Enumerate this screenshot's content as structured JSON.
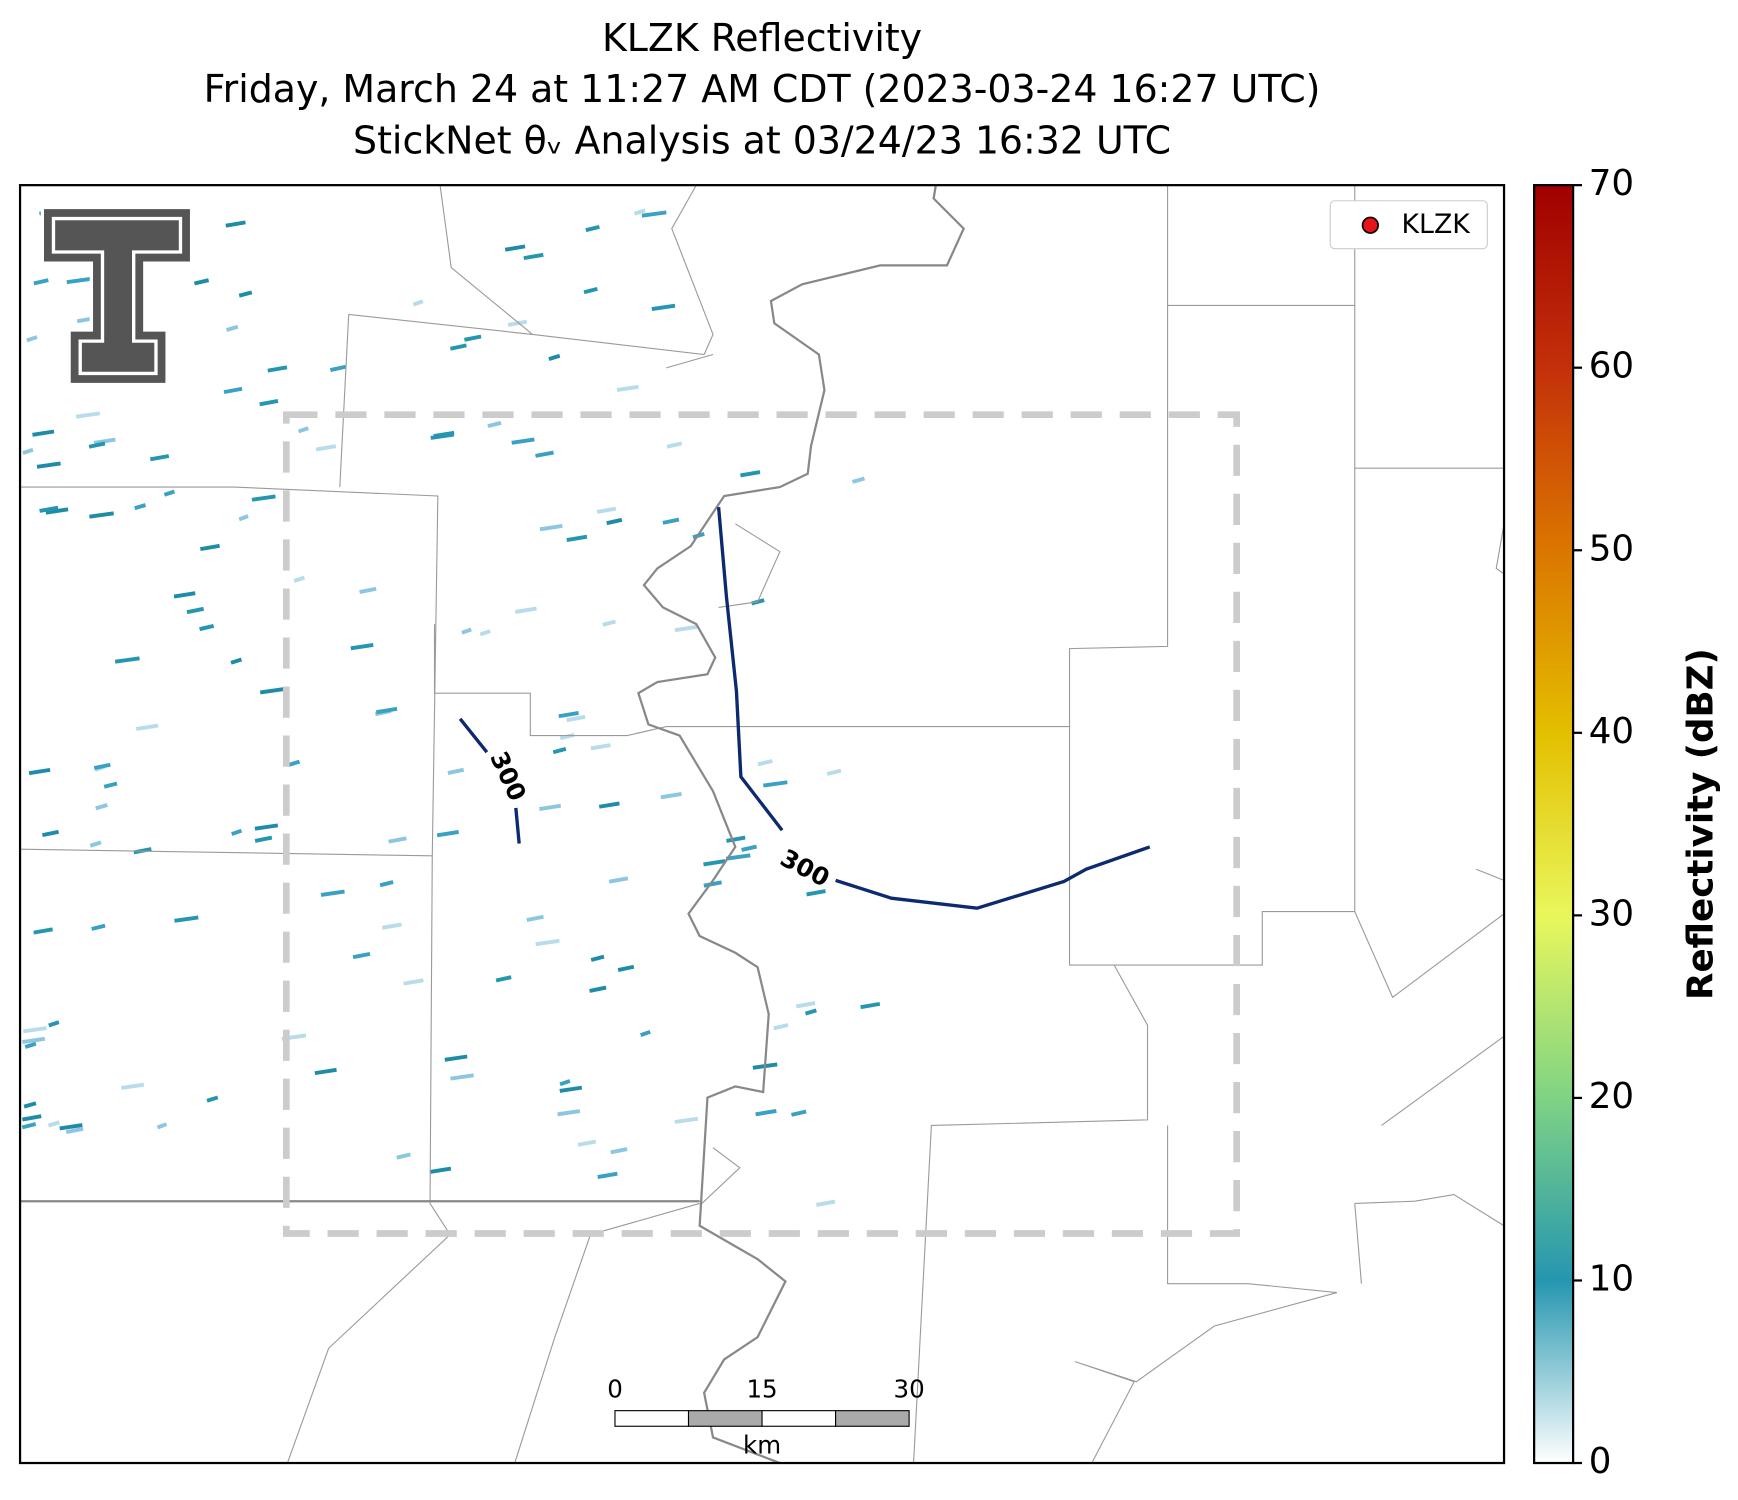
{
  "chart_data": {
    "type": "map",
    "title": [
      "KLZK Reflectivity",
      "Friday, March 24 at 11:27 AM CDT (2023-03-24 16:27 UTC)",
      "StickNet θᵥ Analysis at 03/24/23 16:32 UTC"
    ],
    "legend": [
      "KLZK"
    ],
    "legend_position": "upper right",
    "marker_color": "#e8141c",
    "contour_color": "#0d2a70",
    "contour_labels": [
      300,
      300
    ],
    "colorbar": {
      "label": "Reflectivity (dBZ)",
      "ylim": [
        0,
        70
      ],
      "yticks": [
        0,
        10,
        20,
        30,
        40,
        50,
        60,
        70
      ],
      "colors": [
        "#ffffff",
        "#2596b0",
        "#7fd384",
        "#e9f75c",
        "#e3bf00",
        "#db7600",
        "#c4300a",
        "#a00000"
      ]
    },
    "scale_bar": {
      "ticks": [
        0,
        15,
        30
      ],
      "unit": "km"
    }
  }
}
